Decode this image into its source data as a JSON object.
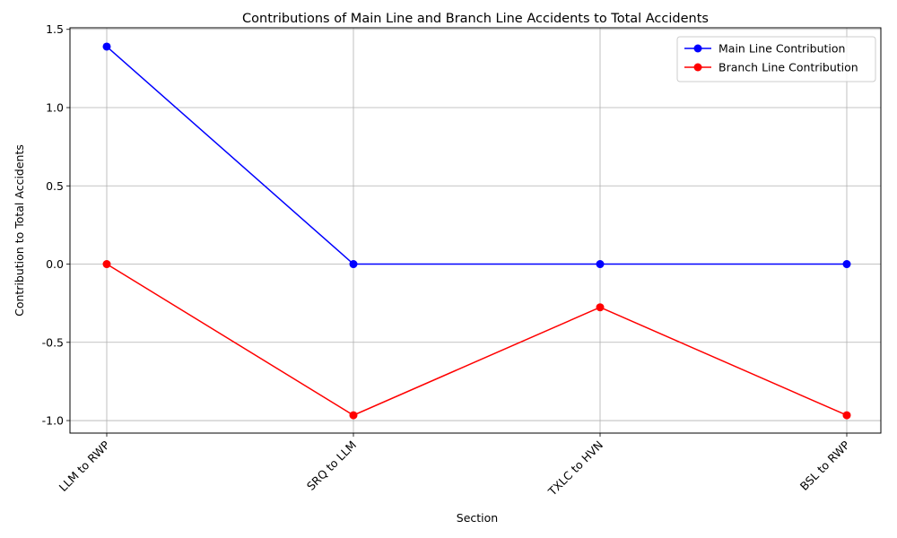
{
  "chart_data": {
    "type": "line",
    "title": "Contributions of Main Line and Branch Line Accidents to Total Accidents",
    "xlabel": "Section",
    "ylabel": "Contribution to Total Accidents",
    "categories": [
      "LLM  to RWP",
      "SRQ to LLM",
      "TXLC to HVN",
      "BSL to RWP"
    ],
    "series": [
      {
        "name": "Main Line Contribution",
        "color": "#0000ff",
        "values": [
          1.39,
          0.0,
          0.0,
          0.0
        ]
      },
      {
        "name": "Branch Line Contribution",
        "color": "#ff0000",
        "values": [
          0.0,
          -0.966,
          -0.276,
          -0.966
        ]
      }
    ],
    "yticks": [
      "-1.0",
      "-0.5",
      "0.0",
      "0.5",
      "1.0",
      "1.5"
    ],
    "ylim": [
      -1.08,
      1.51
    ],
    "grid": true,
    "legend_position": "top-right"
  }
}
